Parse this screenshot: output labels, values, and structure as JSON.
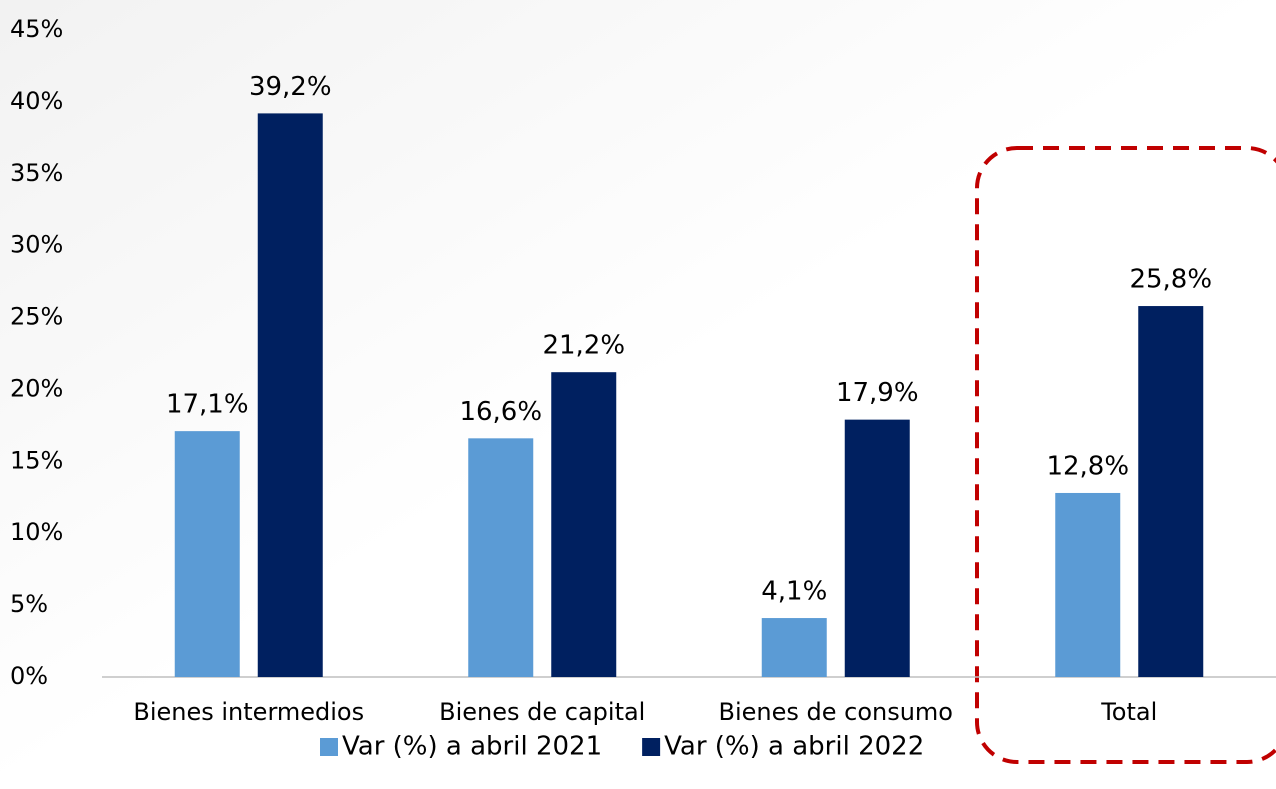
{
  "chart_data": {
    "type": "bar",
    "categories": [
      "Bienes intermedios",
      "Bienes de capital",
      "Bienes de consumo",
      "Total"
    ],
    "series": [
      {
        "name": "Var (%) a abril 2021",
        "color": "#5b9bd5",
        "values": [
          17.1,
          16.6,
          4.1,
          12.8
        ],
        "value_labels": [
          "17,1%",
          "16,6%",
          "4,1%",
          "12,8%"
        ]
      },
      {
        "name": "Var (%) a abril 2022",
        "color": "#002060",
        "values": [
          39.2,
          21.2,
          17.9,
          25.8
        ],
        "value_labels": [
          "39,2%",
          "21,2%",
          "17,9%",
          "25,8%"
        ]
      }
    ],
    "ylim": [
      0,
      45
    ],
    "yticks": [
      {
        "value": 0,
        "label": "0%"
      },
      {
        "value": 5,
        "label": "5%"
      },
      {
        "value": 10,
        "label": "10%"
      },
      {
        "value": 15,
        "label": "15%"
      },
      {
        "value": 20,
        "label": "20%"
      },
      {
        "value": 25,
        "label": "25%"
      },
      {
        "value": 30,
        "label": "30%"
      },
      {
        "value": 35,
        "label": "35%"
      },
      {
        "value": 40,
        "label": "40%"
      },
      {
        "value": 45,
        "label": "45%"
      }
    ],
    "grid": false,
    "legend": "bottom"
  }
}
